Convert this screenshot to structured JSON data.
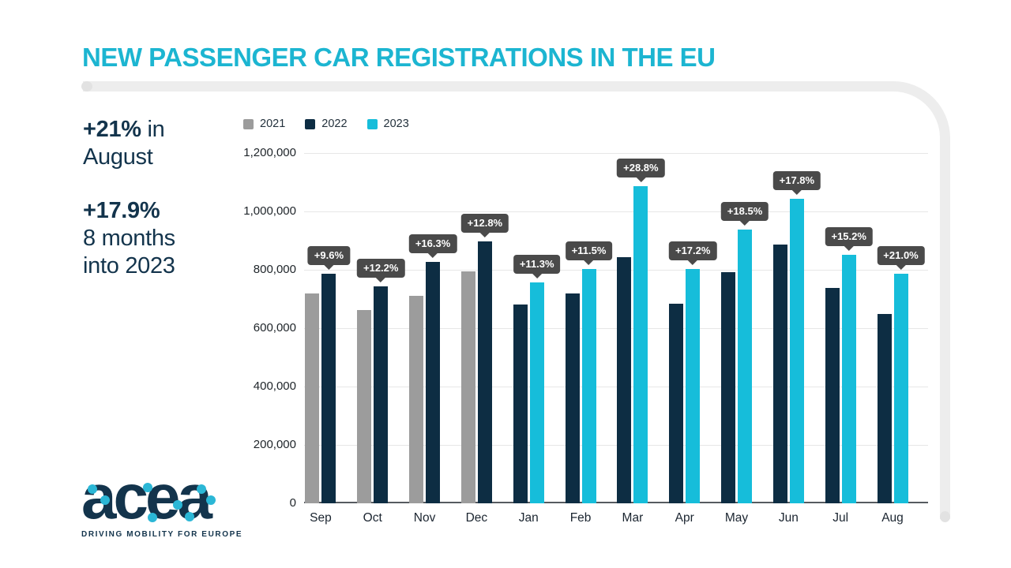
{
  "header": {
    "title": "NEW PASSENGER CAR REGISTRATIONS IN THE EU"
  },
  "stats": {
    "stat1": {
      "bold": "+21%",
      "rest": " in",
      "line2": "August"
    },
    "stat2": {
      "bold": "+17.9%",
      "line2": "8 months",
      "line3": "into 2023"
    }
  },
  "logo": {
    "wordmark": "acea",
    "tagline": "DRIVING MOBILITY FOR EUROPE"
  },
  "colors": {
    "accent_cyan": "#1cb5d1",
    "bar_2021": "#9c9c9c",
    "bar_2022": "#0d2d43",
    "bar_2023": "#16bdda",
    "tooltip_bg": "#4a4a4a",
    "navy_text": "#13344c",
    "grid": "#e7e7e7"
  },
  "chart_data": {
    "type": "bar",
    "title": "New passenger car registrations in the EU, monthly, year-over-year comparison",
    "categories": [
      "Sep",
      "Oct",
      "Nov",
      "Dec",
      "Jan",
      "Feb",
      "Mar",
      "Apr",
      "May",
      "Jun",
      "Jul",
      "Aug"
    ],
    "series": [
      {
        "name": "2021",
        "color_key": "bar_2021",
        "values": [
          718000,
          663000,
          711000,
          795000,
          null,
          null,
          null,
          null,
          null,
          null,
          null,
          null
        ]
      },
      {
        "name": "2022",
        "color_key": "bar_2022",
        "values": [
          787000,
          744000,
          827000,
          897000,
          681000,
          719000,
          844000,
          684000,
          792000,
          886000,
          739000,
          650000
        ]
      },
      {
        "name": "2023",
        "color_key": "bar_2023",
        "values": [
          null,
          null,
          null,
          null,
          758000,
          802000,
          1087000,
          802000,
          938000,
          1044000,
          851000,
          787000
        ]
      }
    ],
    "pct_labels": [
      "+9.6%",
      "+12.2%",
      "+16.3%",
      "+12.8%",
      "+11.3%",
      "+11.5%",
      "+28.8%",
      "+17.2%",
      "+18.5%",
      "+17.8%",
      "+15.2%",
      "+21.0%"
    ],
    "y_axis": {
      "min": 0,
      "max": 1200000,
      "ticks": [
        "1,200,000",
        "1,000,000",
        "800,000",
        "600,000",
        "400,000",
        "200,000",
        "0"
      ]
    },
    "grid": true,
    "legend_position": "top-left"
  }
}
